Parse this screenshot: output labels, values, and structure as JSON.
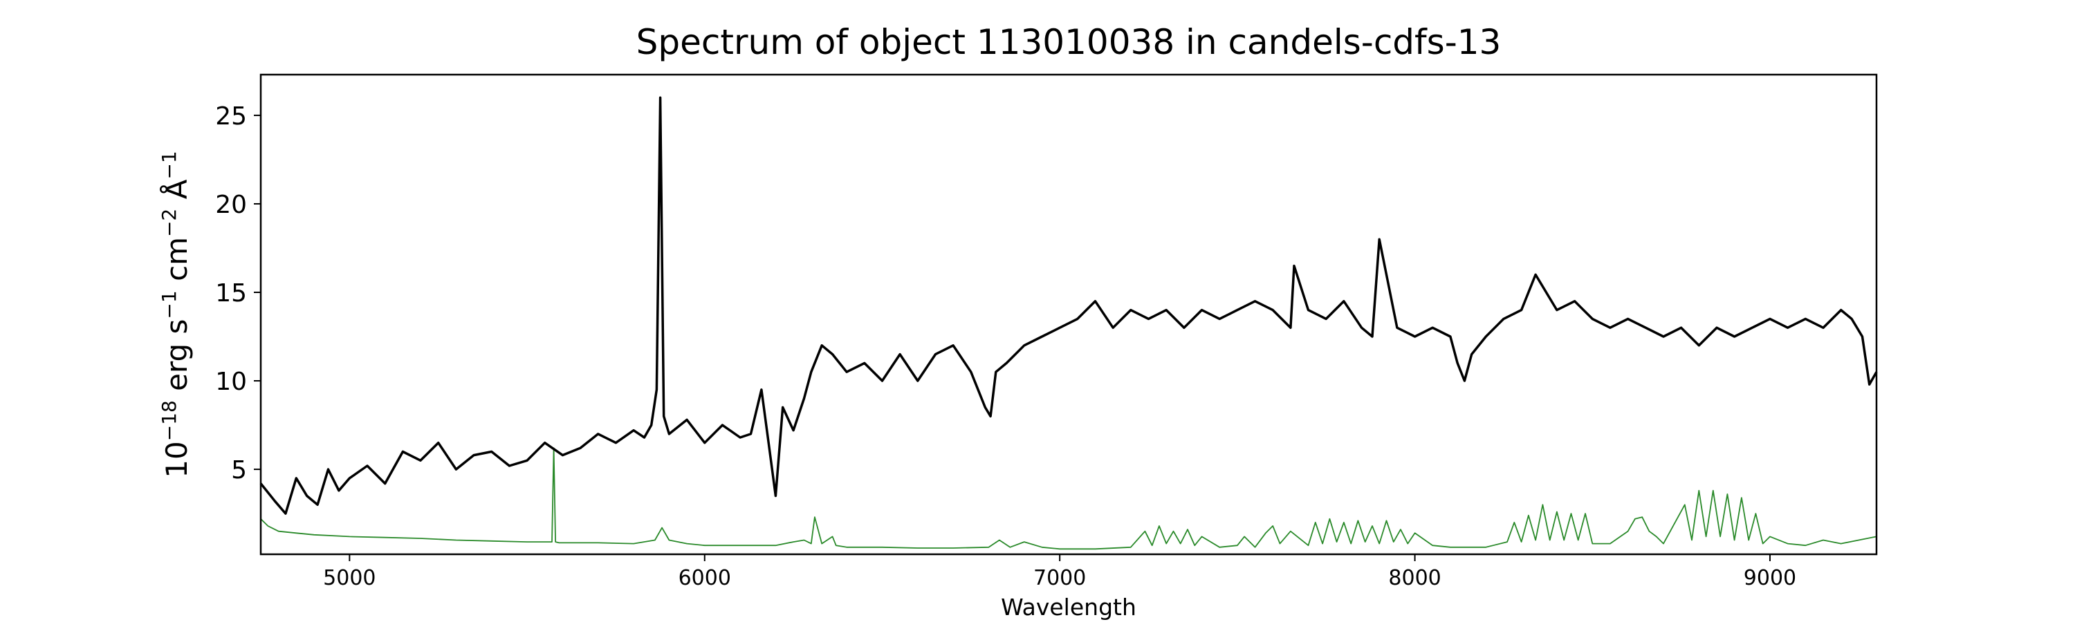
{
  "chart_data": {
    "type": "line",
    "title": "Spectrum of object 113010038 in candels-cdfs-13",
    "xlabel": "Wavelength",
    "ylabel_parts": {
      "base": "10",
      "exp1": "−18",
      "unit1": " erg s",
      "exp2": "−1",
      "unit2": " cm",
      "exp3": "−2",
      "unit3": " Å",
      "exp4": "−1"
    },
    "xlim": [
      4750,
      9300
    ],
    "ylim": [
      0.2,
      27.3
    ],
    "xticks": [
      5000,
      6000,
      7000,
      8000,
      9000
    ],
    "xtick_labels": [
      "5000",
      "6000",
      "7000",
      "8000",
      "9000"
    ],
    "yticks": [
      5,
      10,
      15,
      20,
      25
    ],
    "ytick_labels": [
      "5",
      "10",
      "15",
      "20",
      "25"
    ],
    "grid": false,
    "colors": {
      "flux": "#000000",
      "error": "#2a8a2a"
    },
    "series": [
      {
        "role": "flux",
        "x": [
          4750,
          4790,
          4820,
          4850,
          4880,
          4910,
          4940,
          4970,
          5000,
          5050,
          5100,
          5150,
          5200,
          5250,
          5300,
          5350,
          5400,
          5450,
          5500,
          5550,
          5600,
          5650,
          5700,
          5750,
          5800,
          5830,
          5850,
          5865,
          5875,
          5885,
          5900,
          5950,
          6000,
          6050,
          6100,
          6130,
          6160,
          6180,
          6200,
          6220,
          6250,
          6280,
          6300,
          6330,
          6360,
          6400,
          6450,
          6500,
          6550,
          6600,
          6650,
          6700,
          6750,
          6790,
          6805,
          6820,
          6850,
          6900,
          6950,
          7000,
          7050,
          7100,
          7150,
          7200,
          7250,
          7300,
          7350,
          7400,
          7450,
          7500,
          7550,
          7600,
          7650,
          7660,
          7700,
          7750,
          7800,
          7850,
          7880,
          7900,
          7950,
          8000,
          8050,
          8100,
          8120,
          8140,
          8160,
          8200,
          8250,
          8300,
          8340,
          8400,
          8450,
          8500,
          8550,
          8600,
          8650,
          8700,
          8750,
          8800,
          8850,
          8900,
          8950,
          9000,
          9050,
          9100,
          9150,
          9200,
          9230,
          9260,
          9280,
          9300
        ],
        "y": [
          4.2,
          3.2,
          2.5,
          4.5,
          3.5,
          3.0,
          5.0,
          3.8,
          4.5,
          5.2,
          4.2,
          6.0,
          5.5,
          6.5,
          5.0,
          5.8,
          6.0,
          5.2,
          5.5,
          6.5,
          5.8,
          6.2,
          7.0,
          6.5,
          7.2,
          6.8,
          7.5,
          9.5,
          26.0,
          8.0,
          7.0,
          7.8,
          6.5,
          7.5,
          6.8,
          7.0,
          9.5,
          6.5,
          3.5,
          8.5,
          7.2,
          9.0,
          10.5,
          12.0,
          11.5,
          10.5,
          11.0,
          10.0,
          11.5,
          10.0,
          11.5,
          12.0,
          10.5,
          8.5,
          8.0,
          10.5,
          11.0,
          12.0,
          12.5,
          13.0,
          13.5,
          14.5,
          13.0,
          14.0,
          13.5,
          14.0,
          13.0,
          14.0,
          13.5,
          14.0,
          14.5,
          14.0,
          13.0,
          16.5,
          14.0,
          13.5,
          14.5,
          13.0,
          12.5,
          18.0,
          13.0,
          12.5,
          13.0,
          12.5,
          11.0,
          10.0,
          11.5,
          12.5,
          13.5,
          14.0,
          16.0,
          14.0,
          14.5,
          13.5,
          13.0,
          13.5,
          13.0,
          12.5,
          13.0,
          12.0,
          13.0,
          12.5,
          13.0,
          13.5,
          13.0,
          13.5,
          13.0,
          14.0,
          13.5,
          12.5,
          9.8,
          10.5
        ]
      },
      {
        "role": "error",
        "x": [
          4750,
          4770,
          4800,
          4850,
          4900,
          5000,
          5100,
          5200,
          5300,
          5400,
          5500,
          5570,
          5575,
          5580,
          5590,
          5700,
          5800,
          5860,
          5880,
          5900,
          5950,
          6000,
          6100,
          6200,
          6250,
          6280,
          6300,
          6310,
          6330,
          6360,
          6370,
          6400,
          6500,
          6600,
          6700,
          6800,
          6830,
          6860,
          6900,
          6950,
          7000,
          7100,
          7200,
          7240,
          7260,
          7280,
          7300,
          7320,
          7340,
          7360,
          7380,
          7400,
          7450,
          7500,
          7520,
          7550,
          7580,
          7600,
          7620,
          7650,
          7700,
          7720,
          7740,
          7760,
          7780,
          7800,
          7820,
          7840,
          7860,
          7880,
          7900,
          7920,
          7940,
          7960,
          7980,
          8000,
          8050,
          8100,
          8200,
          8260,
          8280,
          8300,
          8320,
          8340,
          8360,
          8380,
          8400,
          8420,
          8440,
          8460,
          8480,
          8500,
          8550,
          8600,
          8620,
          8640,
          8660,
          8680,
          8700,
          8760,
          8780,
          8800,
          8820,
          8840,
          8860,
          8880,
          8900,
          8920,
          8940,
          8960,
          8980,
          9000,
          9050,
          9100,
          9150,
          9200,
          9250,
          9300
        ],
        "y": [
          2.2,
          1.8,
          1.5,
          1.4,
          1.3,
          1.2,
          1.15,
          1.1,
          1.0,
          0.95,
          0.9,
          0.9,
          6.2,
          0.9,
          0.85,
          0.85,
          0.8,
          1.0,
          1.7,
          1.0,
          0.8,
          0.7,
          0.7,
          0.7,
          0.9,
          1.0,
          0.8,
          2.3,
          0.8,
          1.2,
          0.7,
          0.6,
          0.6,
          0.55,
          0.55,
          0.6,
          1.0,
          0.6,
          0.9,
          0.6,
          0.5,
          0.5,
          0.6,
          1.5,
          0.7,
          1.8,
          0.8,
          1.5,
          0.8,
          1.6,
          0.7,
          1.2,
          0.6,
          0.7,
          1.2,
          0.6,
          1.4,
          1.8,
          0.8,
          1.5,
          0.7,
          2.0,
          0.8,
          2.2,
          0.9,
          2.0,
          0.8,
          2.1,
          0.9,
          1.8,
          0.8,
          2.1,
          0.9,
          1.6,
          0.8,
          1.4,
          0.7,
          0.6,
          0.6,
          0.9,
          2.0,
          0.9,
          2.4,
          1.0,
          3.0,
          1.0,
          2.6,
          1.0,
          2.5,
          1.0,
          2.5,
          0.8,
          0.8,
          1.5,
          2.2,
          2.3,
          1.5,
          1.2,
          0.8,
          3.0,
          1.0,
          3.8,
          1.2,
          3.8,
          1.2,
          3.6,
          1.0,
          3.4,
          1.0,
          2.5,
          0.8,
          1.2,
          0.8,
          0.7,
          1.0,
          0.8,
          1.0,
          1.2
        ]
      }
    ]
  }
}
